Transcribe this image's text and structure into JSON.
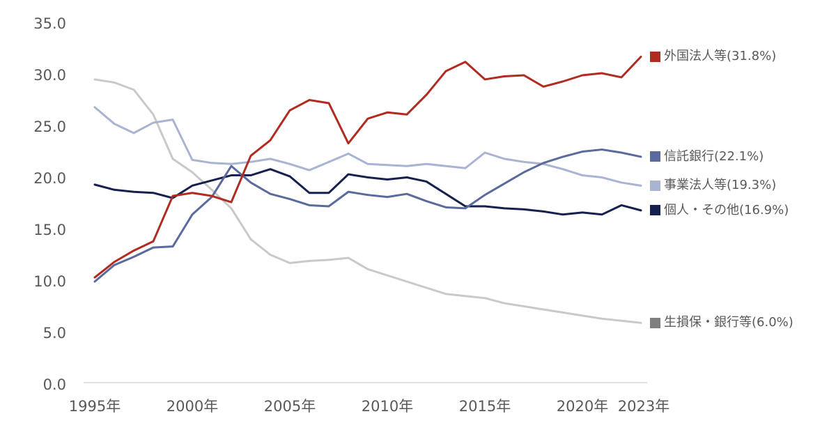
{
  "chart_data": {
    "type": "line",
    "title": "",
    "xlabel": "",
    "ylabel": "",
    "ylim": [
      0,
      35
    ],
    "grid": false,
    "legend_position": "right-of-line-ends",
    "axis_color": "#d9d9d9",
    "tick_label_color": "#595959",
    "legend_text_color": "#595959",
    "x": [
      1995,
      1996,
      1997,
      1998,
      1999,
      2000,
      2001,
      2002,
      2003,
      2004,
      2005,
      2006,
      2007,
      2008,
      2009,
      2010,
      2011,
      2012,
      2013,
      2014,
      2015,
      2016,
      2017,
      2018,
      2019,
      2020,
      2021,
      2022,
      2023
    ],
    "x_ticks": [
      {
        "year": 1995,
        "label": "1995年"
      },
      {
        "year": 2000,
        "label": "2000年"
      },
      {
        "year": 2005,
        "label": "2005年"
      },
      {
        "year": 2010,
        "label": "2010年"
      },
      {
        "year": 2015,
        "label": "2015年"
      },
      {
        "year": 2020,
        "label": "2020年"
      },
      {
        "year": 2023,
        "label": "2023年"
      }
    ],
    "y_ticks": [
      {
        "value": 0,
        "label": "0.0"
      },
      {
        "value": 5,
        "label": "5.0"
      },
      {
        "value": 10,
        "label": "10.0"
      },
      {
        "value": 15,
        "label": "15.0"
      },
      {
        "value": 20,
        "label": "20.0"
      },
      {
        "value": 25,
        "label": "25.0"
      },
      {
        "value": 30,
        "label": "30.0"
      },
      {
        "value": 35,
        "label": "35.0"
      }
    ],
    "series": [
      {
        "id": "foreign-corporations",
        "name": "外国法人等",
        "label": "外国法人等(31.8%)",
        "final_pct": 31.8,
        "line_color": "#b02c20",
        "legend_color": "#b02c20",
        "values": [
          10.4,
          11.9,
          13.0,
          13.9,
          18.3,
          18.6,
          18.3,
          17.7,
          22.2,
          23.7,
          26.6,
          27.6,
          27.3,
          23.4,
          25.8,
          26.4,
          26.2,
          28.1,
          30.4,
          31.3,
          29.6,
          29.9,
          30.0,
          28.9,
          29.4,
          30.0,
          30.2,
          29.8,
          31.8
        ]
      },
      {
        "id": "trust-banks",
        "name": "信託銀行",
        "label": "信託銀行(22.1%)",
        "final_pct": 22.1,
        "line_color": "#5a6a9c",
        "legend_color": "#5a6a9c",
        "values": [
          10.0,
          11.6,
          12.4,
          13.3,
          13.4,
          16.5,
          18.2,
          21.2,
          19.6,
          18.5,
          18.0,
          17.4,
          17.3,
          18.7,
          18.4,
          18.2,
          18.5,
          17.8,
          17.2,
          17.1,
          18.4,
          19.5,
          20.6,
          21.5,
          22.1,
          22.6,
          22.8,
          22.5,
          22.1
        ]
      },
      {
        "id": "business-corporations",
        "name": "事業法人等",
        "label": "事業法人等(19.3%)",
        "final_pct": 19.3,
        "line_color": "#a9b3d2",
        "legend_color": "#a9b3d2",
        "values": [
          26.9,
          25.3,
          24.4,
          25.4,
          25.7,
          21.8,
          21.5,
          21.4,
          21.6,
          21.9,
          21.4,
          20.8,
          21.6,
          22.4,
          21.4,
          21.3,
          21.2,
          21.4,
          21.2,
          21.0,
          22.5,
          21.9,
          21.6,
          21.4,
          20.9,
          20.3,
          20.1,
          19.6,
          19.3
        ]
      },
      {
        "id": "individuals-others",
        "name": "個人・その他",
        "label": "個人・その他(16.9%)",
        "final_pct": 16.9,
        "line_color": "#16204e",
        "legend_color": "#16204e",
        "values": [
          19.4,
          18.9,
          18.7,
          18.6,
          18.1,
          19.3,
          19.8,
          20.3,
          20.3,
          20.9,
          20.2,
          18.6,
          18.6,
          20.4,
          20.1,
          19.9,
          20.1,
          19.7,
          18.5,
          17.3,
          17.3,
          17.1,
          17.0,
          16.8,
          16.5,
          16.7,
          16.5,
          17.4,
          16.9
        ]
      },
      {
        "id": "insurers-banks",
        "name": "生損保・銀行等",
        "label": "生損保・銀行等(6.0%)",
        "final_pct": 6.0,
        "line_color": "#c9c9c9",
        "legend_color": "#7f7f7f",
        "values": [
          29.6,
          29.3,
          28.6,
          26.2,
          21.9,
          20.6,
          18.9,
          17.1,
          14.1,
          12.6,
          11.8,
          12.0,
          12.1,
          12.3,
          11.2,
          10.6,
          10.0,
          9.4,
          8.8,
          8.6,
          8.4,
          7.9,
          7.6,
          7.3,
          7.0,
          6.7,
          6.4,
          6.2,
          6.0
        ]
      }
    ]
  }
}
